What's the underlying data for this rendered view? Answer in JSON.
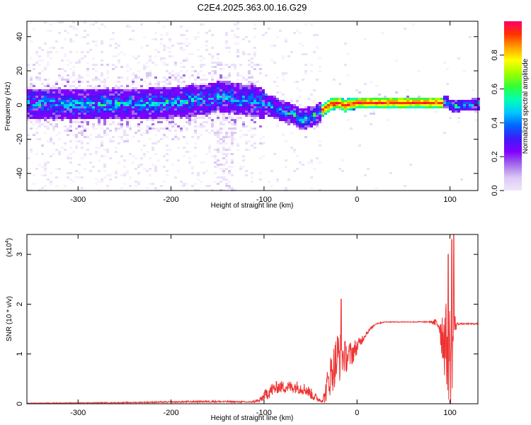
{
  "title": "C2E4.2025.363.00.16.G29",
  "chart_data": [
    {
      "type": "heatmap",
      "xlabel": "Height of straight line (km)",
      "ylabel": "Frequency (Hz)",
      "xlim": [
        -355,
        130
      ],
      "ylim": [
        -50,
        49
      ],
      "xticks": [
        -300,
        -200,
        -100,
        0,
        100
      ],
      "yticks": [
        -40,
        -20,
        0,
        20,
        40
      ],
      "grid": false,
      "colorbar": {
        "label": "Normalized spectral amplitude",
        "range": [
          0.0,
          1.0
        ],
        "ticks": [
          0.0,
          0.2,
          0.4,
          0.6,
          0.8
        ],
        "colors": [
          "#f0e6fa",
          "#dcc8f5",
          "#a46be9",
          "#7f00ff",
          "#3d1cf5",
          "#0066ff",
          "#00c8ff",
          "#00ffb4",
          "#33ff33",
          "#a0ff00",
          "#ffff00",
          "#ffa000",
          "#ff3300",
          "#ff0066"
        ]
      },
      "center_frequency_profile": {
        "x": [
          -355,
          -300,
          -250,
          -200,
          -160,
          -150,
          -130,
          -110,
          -95,
          -80,
          -70,
          -60,
          -55,
          -50,
          -45,
          -40,
          -30,
          -20,
          -15,
          -10,
          0,
          20,
          50,
          90,
          95,
          100,
          130
        ],
        "y": [
          1,
          1,
          1,
          2,
          4,
          6,
          4,
          3,
          0,
          -3,
          -5,
          -8,
          -7,
          -6,
          -5,
          -3,
          1,
          2,
          0,
          1,
          2,
          2,
          2,
          2,
          3,
          0,
          1
        ]
      }
    },
    {
      "type": "line",
      "xlabel": "Height of straight line (km)",
      "ylabel": "SNR (10 * v/v)",
      "multiplier_label": "(x10",
      "multiplier_exponent": "4",
      "xlim": [
        -355,
        130
      ],
      "ylim": [
        0,
        3.4
      ],
      "xticks": [
        -300,
        -200,
        -100,
        0,
        100
      ],
      "yticks": [
        0,
        1,
        2,
        3
      ],
      "grid": false,
      "series": [
        {
          "color": "#ee3333",
          "envelope": {
            "x": [
              -355,
              -250,
              -160,
              -115,
              -105,
              -95,
              -85,
              -75,
              -65,
              -55,
              -45,
              -38,
              -35,
              -30,
              -25,
              -20,
              -15,
              -10,
              -5,
              0,
              10,
              20,
              30,
              40,
              60,
              80,
              88,
              92,
              95,
              98,
              100,
              103,
              105,
              108,
              112,
              130
            ],
            "base": [
              0.01,
              0.02,
              0.04,
              0.03,
              0.05,
              0.2,
              0.3,
              0.3,
              0.3,
              0.25,
              0.1,
              0.05,
              0.1,
              0.4,
              0.6,
              0.8,
              0.85,
              0.85,
              0.95,
              1.1,
              1.4,
              1.6,
              1.64,
              1.64,
              1.64,
              1.64,
              1.55,
              1.2,
              1.0,
              0.8,
              0.6,
              1.0,
              1.5,
              1.6,
              1.6,
              1.6
            ],
            "spread": [
              0.01,
              0.02,
              0.04,
              0.03,
              0.08,
              0.3,
              0.25,
              0.25,
              0.25,
              0.25,
              0.2,
              0.05,
              0.3,
              0.8,
              0.9,
              1.2,
              0.7,
              0.6,
              0.5,
              0.3,
              0.1,
              0.04,
              0.02,
              0.02,
              0.02,
              0.03,
              0.3,
              1.2,
              1.6,
              1.9,
              2.3,
              1.8,
              0.5,
              0.05,
              0.03,
              0.03
            ]
          },
          "peaks": [
            {
              "x": -17,
              "y": 2.1
            },
            {
              "x": 98,
              "y": 3.0
            },
            {
              "x": 102,
              "y": 3.3
            },
            {
              "x": 104,
              "y": 3.4
            }
          ]
        }
      ]
    }
  ]
}
